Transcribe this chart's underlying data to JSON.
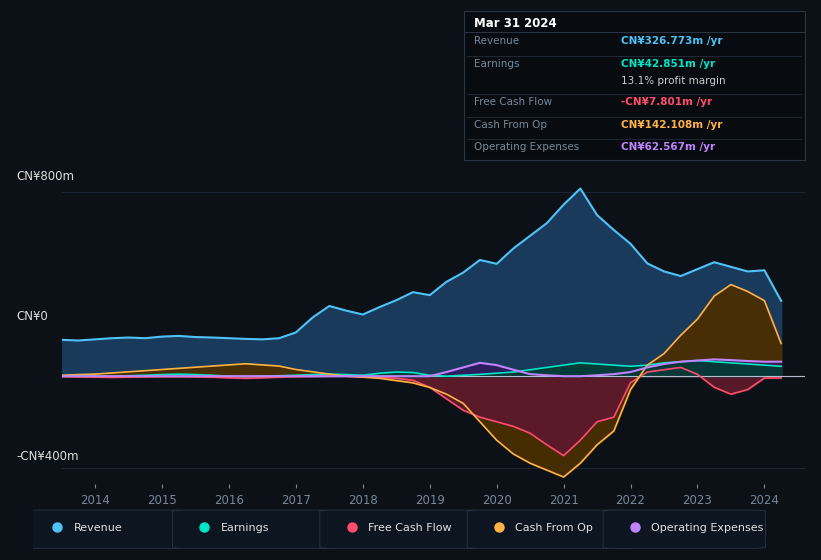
{
  "background_color": "#0c1017",
  "tooltip_bg": "#080c10",
  "ylabel_top": "CN¥800m",
  "ylabel_zero": "CN¥0",
  "ylabel_bottom": "-CN¥400m",
  "xlim_min": 2013.5,
  "xlim_max": 2024.6,
  "ylim_min": -470,
  "ylim_max": 880,
  "xtick_years": [
    2014,
    2015,
    2016,
    2017,
    2018,
    2019,
    2020,
    2021,
    2022,
    2023,
    2024
  ],
  "years": [
    2013.3,
    2013.5,
    2013.75,
    2014.0,
    2014.25,
    2014.5,
    2014.75,
    2015.0,
    2015.25,
    2015.5,
    2015.75,
    2016.0,
    2016.25,
    2016.5,
    2016.75,
    2017.0,
    2017.25,
    2017.5,
    2017.75,
    2018.0,
    2018.25,
    2018.5,
    2018.75,
    2019.0,
    2019.25,
    2019.5,
    2019.75,
    2020.0,
    2020.25,
    2020.5,
    2020.75,
    2021.0,
    2021.25,
    2021.5,
    2021.75,
    2022.0,
    2022.25,
    2022.5,
    2022.75,
    2023.0,
    2023.25,
    2023.5,
    2023.75,
    2024.0,
    2024.25
  ],
  "revenue": [
    155,
    158,
    155,
    160,
    165,
    168,
    165,
    172,
    175,
    170,
    168,
    165,
    162,
    160,
    165,
    190,
    255,
    305,
    285,
    268,
    300,
    330,
    365,
    352,
    410,
    450,
    505,
    488,
    555,
    610,
    665,
    745,
    815,
    700,
    635,
    575,
    490,
    455,
    435,
    465,
    495,
    475,
    455,
    460,
    327
  ],
  "earnings": [
    3,
    2,
    1,
    0,
    -2,
    2,
    4,
    7,
    9,
    7,
    4,
    0,
    -2,
    0,
    2,
    4,
    7,
    9,
    7,
    4,
    13,
    18,
    16,
    4,
    0,
    4,
    8,
    13,
    18,
    28,
    38,
    48,
    58,
    53,
    48,
    43,
    48,
    58,
    63,
    68,
    63,
    58,
    53,
    48,
    43
  ],
  "free_cash_flow": [
    -2,
    -2,
    -3,
    -4,
    -5,
    -4,
    -3,
    -2,
    -2,
    -3,
    -4,
    -7,
    -9,
    -7,
    -4,
    -2,
    -1,
    0,
    0,
    -2,
    -4,
    -9,
    -18,
    -48,
    -98,
    -148,
    -178,
    -198,
    -218,
    -248,
    -298,
    -345,
    -278,
    -198,
    -178,
    -28,
    18,
    28,
    38,
    8,
    -48,
    -78,
    -58,
    -8,
    -8
  ],
  "cash_from_op": [
    4,
    4,
    7,
    9,
    14,
    19,
    24,
    29,
    34,
    39,
    44,
    49,
    54,
    49,
    44,
    29,
    19,
    9,
    0,
    -4,
    -9,
    -19,
    -29,
    -49,
    -78,
    -118,
    -198,
    -278,
    -338,
    -378,
    -408,
    -438,
    -378,
    -298,
    -238,
    -58,
    48,
    98,
    178,
    248,
    348,
    398,
    368,
    328,
    142
  ],
  "op_expenses": [
    0,
    0,
    0,
    0,
    0,
    0,
    0,
    0,
    0,
    0,
    0,
    0,
    0,
    0,
    0,
    0,
    0,
    0,
    0,
    0,
    0,
    0,
    0,
    0,
    18,
    38,
    58,
    48,
    28,
    9,
    4,
    0,
    0,
    4,
    9,
    18,
    38,
    53,
    63,
    68,
    73,
    70,
    66,
    63,
    63
  ],
  "revenue_color": "#4fc3f7",
  "revenue_fill": "#1a3a5c",
  "earnings_color": "#00e5c8",
  "earnings_fill": "#003d33",
  "fcf_color": "#ff4d6d",
  "fcf_fill": "#5c1a2a",
  "cashop_color": "#ffb347",
  "cashop_fill": "#4a2e00",
  "opex_color": "#c084fc",
  "opex_fill": "#2d1a5c",
  "zero_line_color": "#ccccdd",
  "grid_color": "#1a2535",
  "text_color": "#778899",
  "label_color": "#e0e0e0",
  "legend": [
    {
      "label": "Revenue",
      "color": "#4fc3f7"
    },
    {
      "label": "Earnings",
      "color": "#00e5c8"
    },
    {
      "label": "Free Cash Flow",
      "color": "#ff4d6d"
    },
    {
      "label": "Cash From Op",
      "color": "#ffb347"
    },
    {
      "label": "Operating Expenses",
      "color": "#c084fc"
    }
  ],
  "tooltip": {
    "title": "Mar 31 2024",
    "rows": [
      {
        "label": "Revenue",
        "value": "CN¥326.773m /yr",
        "color": "#4fc3f7"
      },
      {
        "label": "Earnings",
        "value": "CN¥42.851m /yr",
        "color": "#00e5c8"
      },
      {
        "label": "",
        "value": "13.1% profit margin",
        "color": "#cccccc"
      },
      {
        "label": "Free Cash Flow",
        "value": "-CN¥7.801m /yr",
        "color": "#ff4d6d"
      },
      {
        "label": "Cash From Op",
        "value": "CN¥142.108m /yr",
        "color": "#ffb347"
      },
      {
        "label": "Operating Expenses",
        "value": "CN¥62.567m /yr",
        "color": "#c084fc"
      }
    ]
  }
}
